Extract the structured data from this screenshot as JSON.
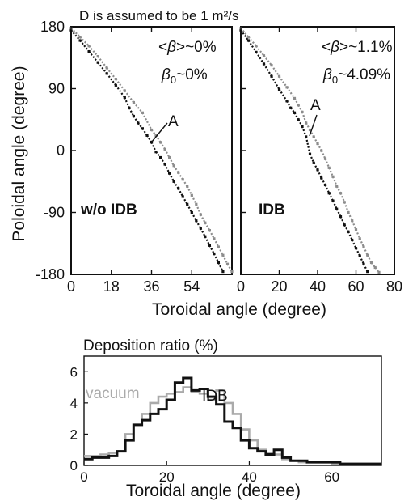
{
  "header": {
    "title": "D is assumed to be 1 m²/s"
  },
  "chart_data": [
    {
      "type": "scatter",
      "id": "left-panel",
      "case_label": "w/o IDB",
      "annotation_beta_avg": "<β>~0%",
      "annotation_beta0": "β0~0%",
      "beta_avg_prefix": "<",
      "beta_avg_symbol": "β",
      "beta_avg_suffix": ">~0%",
      "beta0_symbol": "β",
      "beta0_sub": "0",
      "beta0_suffix": "~0%",
      "point_label": "A",
      "xlabel": "Toroidal angle (degree)",
      "ylabel": "Poloidal angle (degree)",
      "xlim": [
        0,
        72
      ],
      "ylim": [
        -180,
        180
      ],
      "xticks": [
        0,
        18,
        36,
        54
      ],
      "yticks": [
        180,
        90,
        0,
        -90,
        -180
      ],
      "series": [
        {
          "color": "#111111",
          "points": [
            [
              0,
              175
            ],
            [
              4,
              160
            ],
            [
              8,
              144
            ],
            [
              12,
              128
            ],
            [
              16,
              112
            ],
            [
              20,
              95
            ],
            [
              24,
              77
            ],
            [
              26,
              62
            ],
            [
              28,
              50
            ],
            [
              30,
              40
            ],
            [
              32,
              32
            ],
            [
              34,
              22
            ],
            [
              36,
              12
            ],
            [
              38,
              -2
            ],
            [
              40,
              -10
            ],
            [
              42,
              -20
            ],
            [
              44,
              -33
            ],
            [
              46,
              -45
            ],
            [
              48,
              -55
            ],
            [
              50,
              -67
            ],
            [
              52,
              -78
            ],
            [
              54,
              -90
            ],
            [
              56,
              -102
            ],
            [
              58,
              -113
            ],
            [
              60,
              -125
            ],
            [
              62,
              -138
            ],
            [
              64,
              -150
            ],
            [
              66,
              -163
            ],
            [
              68,
              -176
            ]
          ]
        },
        {
          "color": "#8c8c8c",
          "points": [
            [
              0,
              178
            ],
            [
              4,
              165
            ],
            [
              8,
              152
            ],
            [
              12,
              137
            ],
            [
              16,
              120
            ],
            [
              20,
              104
            ],
            [
              24,
              87
            ],
            [
              28,
              70
            ],
            [
              32,
              55
            ],
            [
              36,
              30
            ],
            [
              38,
              22
            ],
            [
              40,
              12
            ],
            [
              42,
              2
            ],
            [
              44,
              -10
            ],
            [
              46,
              -22
            ],
            [
              48,
              -32
            ],
            [
              50,
              -42
            ],
            [
              52,
              -52
            ],
            [
              54,
              -65
            ],
            [
              56,
              -78
            ],
            [
              58,
              -93
            ],
            [
              60,
              -105
            ],
            [
              62,
              -116
            ],
            [
              64,
              -128
            ],
            [
              66,
              -140
            ],
            [
              68,
              -152
            ],
            [
              70,
              -165
            ],
            [
              72,
              -176
            ]
          ]
        }
      ]
    },
    {
      "type": "scatter",
      "id": "right-panel",
      "case_label": "IDB",
      "annotation_beta_avg": "<β>~1.1%",
      "annotation_beta0": "β0~4.09%",
      "beta_avg_prefix": "<",
      "beta_avg_symbol": "β",
      "beta_avg_suffix": ">~1.1%",
      "beta0_symbol": "β",
      "beta0_sub": "0",
      "beta0_suffix": "~4.09%",
      "point_label": "A",
      "xlabel": "Toroidal angle (degree)",
      "ylim": [
        -180,
        180
      ],
      "xlim": [
        0,
        80
      ],
      "xticks": [
        0,
        20,
        40,
        60,
        80
      ],
      "series": [
        {
          "color": "#111111",
          "points": [
            [
              0,
              175
            ],
            [
              4,
              160
            ],
            [
              8,
              143
            ],
            [
              12,
              126
            ],
            [
              16,
              108
            ],
            [
              20,
              89
            ],
            [
              24,
              72
            ],
            [
              26,
              62
            ],
            [
              28,
              55
            ],
            [
              30,
              45
            ],
            [
              32,
              35
            ],
            [
              34,
              20
            ],
            [
              36,
              -5
            ],
            [
              38,
              -18
            ],
            [
              40,
              -28
            ],
            [
              42,
              -40
            ],
            [
              44,
              -50
            ],
            [
              46,
              -62
            ],
            [
              48,
              -73
            ],
            [
              50,
              -85
            ],
            [
              52,
              -96
            ],
            [
              54,
              -108
            ],
            [
              56,
              -118
            ],
            [
              58,
              -130
            ],
            [
              60,
              -142
            ],
            [
              62,
              -153
            ],
            [
              64,
              -165
            ],
            [
              66,
              -176
            ]
          ]
        },
        {
          "color": "#8c8c8c",
          "points": [
            [
              0,
              178
            ],
            [
              4,
              165
            ],
            [
              8,
              152
            ],
            [
              12,
              138
            ],
            [
              16,
              124
            ],
            [
              20,
              108
            ],
            [
              24,
              92
            ],
            [
              28,
              76
            ],
            [
              30,
              66
            ],
            [
              32,
              56
            ],
            [
              34,
              40
            ],
            [
              36,
              30
            ],
            [
              38,
              20
            ],
            [
              40,
              10
            ],
            [
              42,
              0
            ],
            [
              44,
              -12
            ],
            [
              46,
              -25
            ],
            [
              48,
              -38
            ],
            [
              50,
              -52
            ],
            [
              52,
              -62
            ],
            [
              54,
              -75
            ],
            [
              56,
              -90
            ],
            [
              58,
              -102
            ],
            [
              60,
              -115
            ],
            [
              62,
              -128
            ],
            [
              64,
              -140
            ],
            [
              66,
              -152
            ],
            [
              68,
              -163
            ],
            [
              70,
              -170
            ],
            [
              72,
              -177
            ]
          ]
        }
      ]
    },
    {
      "type": "line",
      "id": "bottom-panel",
      "title": "Deposition ratio (%)",
      "xlabel": "Toroidal angle (degree)",
      "xlim": [
        0,
        72
      ],
      "ylim": [
        0,
        7
      ],
      "xticks": [
        0,
        20,
        40,
        60
      ],
      "yticks": [
        0,
        2,
        4,
        6
      ],
      "step": 2,
      "series": [
        {
          "name": "vacuum",
          "color": "#aaaaaa",
          "values": [
            0.6,
            0.6,
            0.7,
            0.8,
            0.9,
            2.0,
            2.6,
            3.3,
            4.0,
            4.4,
            4.6,
            4.7,
            5.0,
            4.7,
            4.6,
            4.2,
            4.8,
            4.0,
            3.3,
            2.3,
            1.6,
            1.0,
            0.8,
            0.7,
            0.4,
            0.3,
            0.2,
            0.2,
            0.2,
            0.2,
            0.1,
            0.1,
            0.1,
            0.1,
            0.1,
            0.1
          ]
        },
        {
          "name": "IDB",
          "color": "#111111",
          "values": [
            0.4,
            0.5,
            0.5,
            0.6,
            0.9,
            1.6,
            2.6,
            2.9,
            3.3,
            3.6,
            4.2,
            5.3,
            5.6,
            4.8,
            4.9,
            4.4,
            3.9,
            2.8,
            2.4,
            1.6,
            1.1,
            0.9,
            0.7,
            1.0,
            0.5,
            0.3,
            0.3,
            0.2,
            0.2,
            0.2,
            0.2,
            0.1,
            0.1,
            0.1,
            0.1,
            0.1
          ]
        }
      ]
    }
  ]
}
